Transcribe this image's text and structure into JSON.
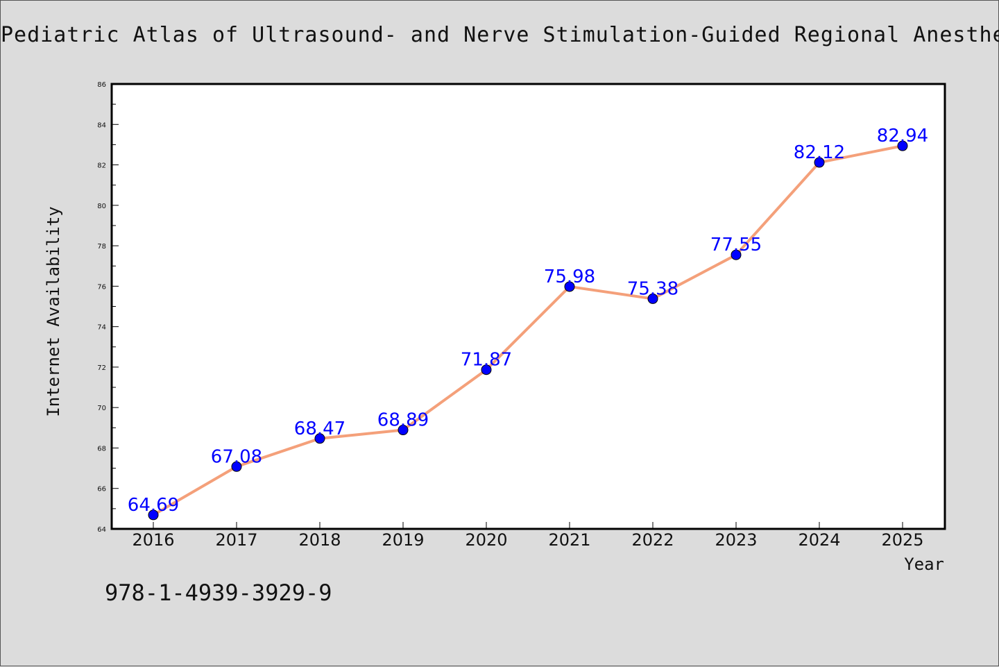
{
  "page": {
    "isbn": "978-1-4939-3929-9"
  },
  "chart_data": {
    "type": "line",
    "title": "Pediatric Atlas of Ultrasound- and Nerve Stimulation-Guided Regional Anesthesia",
    "xlabel": "Year",
    "ylabel": "Internet Availability",
    "categories": [
      "2016",
      "2017",
      "2018",
      "2019",
      "2020",
      "2021",
      "2022",
      "2023",
      "2024",
      "2025"
    ],
    "series": [
      {
        "values": [
          64.69,
          67.08,
          68.47,
          68.89,
          71.87,
          75.98,
          75.38,
          77.55,
          82.12,
          82.94
        ],
        "line_color": "#f4a07a",
        "marker_color": "#0000ff",
        "label_color": "#0000ff"
      }
    ],
    "ylim": [
      64,
      86
    ],
    "yticks": [
      64,
      66,
      68,
      70,
      72,
      74,
      76,
      78,
      80,
      82,
      84,
      86
    ],
    "grid": false,
    "legend": "none"
  }
}
